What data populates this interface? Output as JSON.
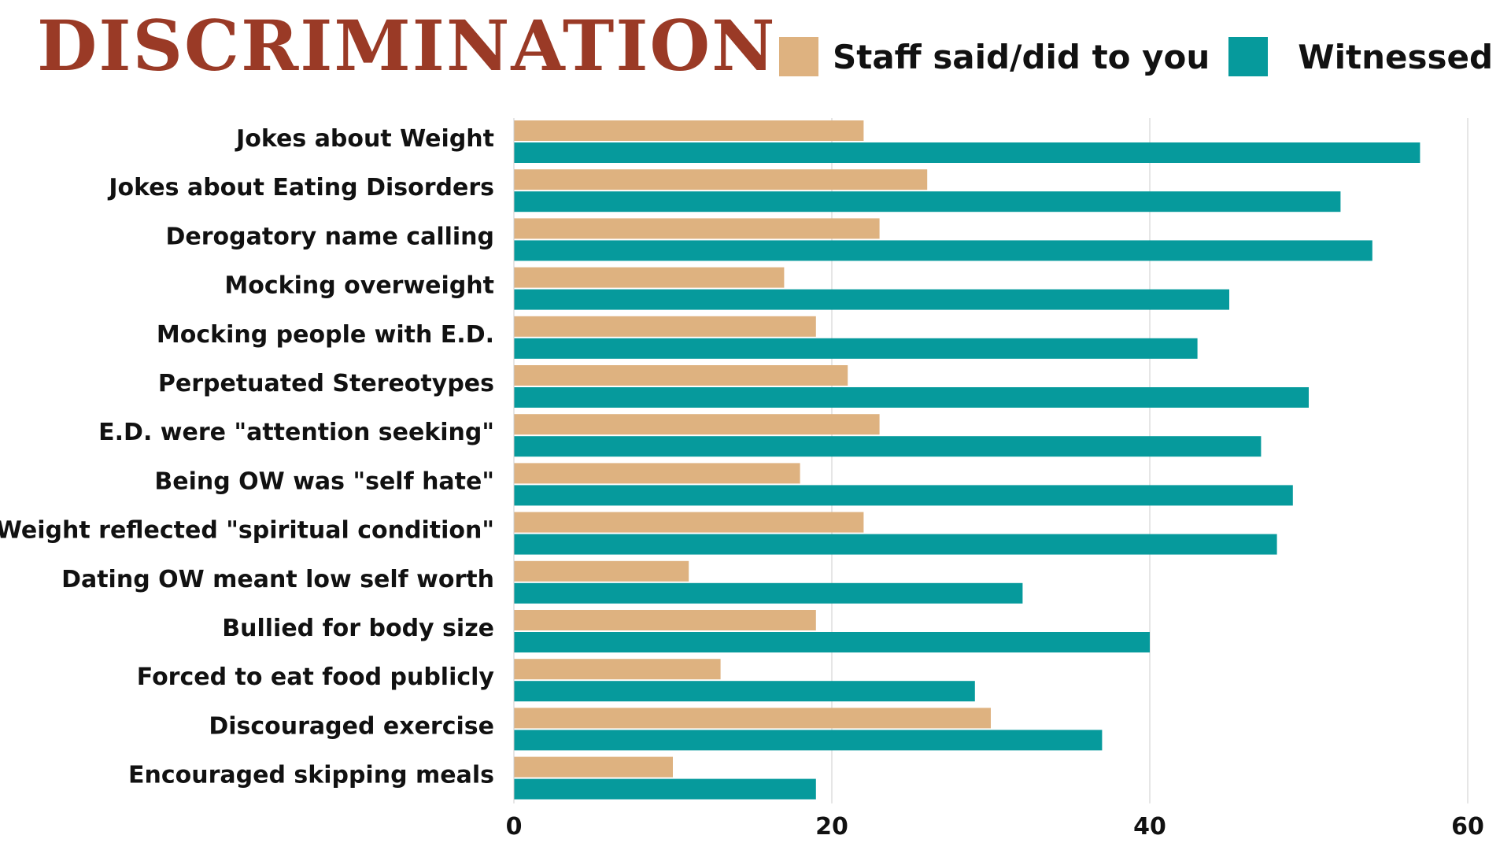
{
  "chart_data": {
    "type": "bar",
    "orientation": "horizontal",
    "title": "DISCRIMINATION",
    "categories": [
      "Jokes about Weight",
      "Jokes about Eating Disorders",
      "Derogatory name calling",
      "Mocking overweight",
      "Mocking people with E.D.",
      "Perpetuated Stereotypes",
      "E.D. were \"attention seeking\"",
      "Being OW was \"self hate\"",
      "Weight reflected \"spiritual condition\"",
      "Dating OW meant low self worth",
      "Bullied for body size",
      "Forced to eat food publicly",
      "Discouraged exercise",
      "Encouraged skipping meals"
    ],
    "series": [
      {
        "name": "Staff said/did to you",
        "color": "#deb280",
        "values": [
          22,
          26,
          23,
          17,
          19,
          21,
          23,
          18,
          22,
          11,
          19,
          13,
          30,
          10
        ]
      },
      {
        "name": "Witnessed",
        "color": "#069a9c",
        "values": [
          57,
          52,
          54,
          45,
          43,
          50,
          47,
          49,
          48,
          32,
          40,
          29,
          37,
          19
        ]
      }
    ],
    "xlim": [
      0,
      60
    ],
    "xticks": [
      "0",
      "20",
      "40",
      "60"
    ],
    "xlabel": "",
    "ylabel": "",
    "grid": "vertical",
    "legend_position": "top-right",
    "title_color": "#9a3a26",
    "grid_color": "#dddddd"
  }
}
